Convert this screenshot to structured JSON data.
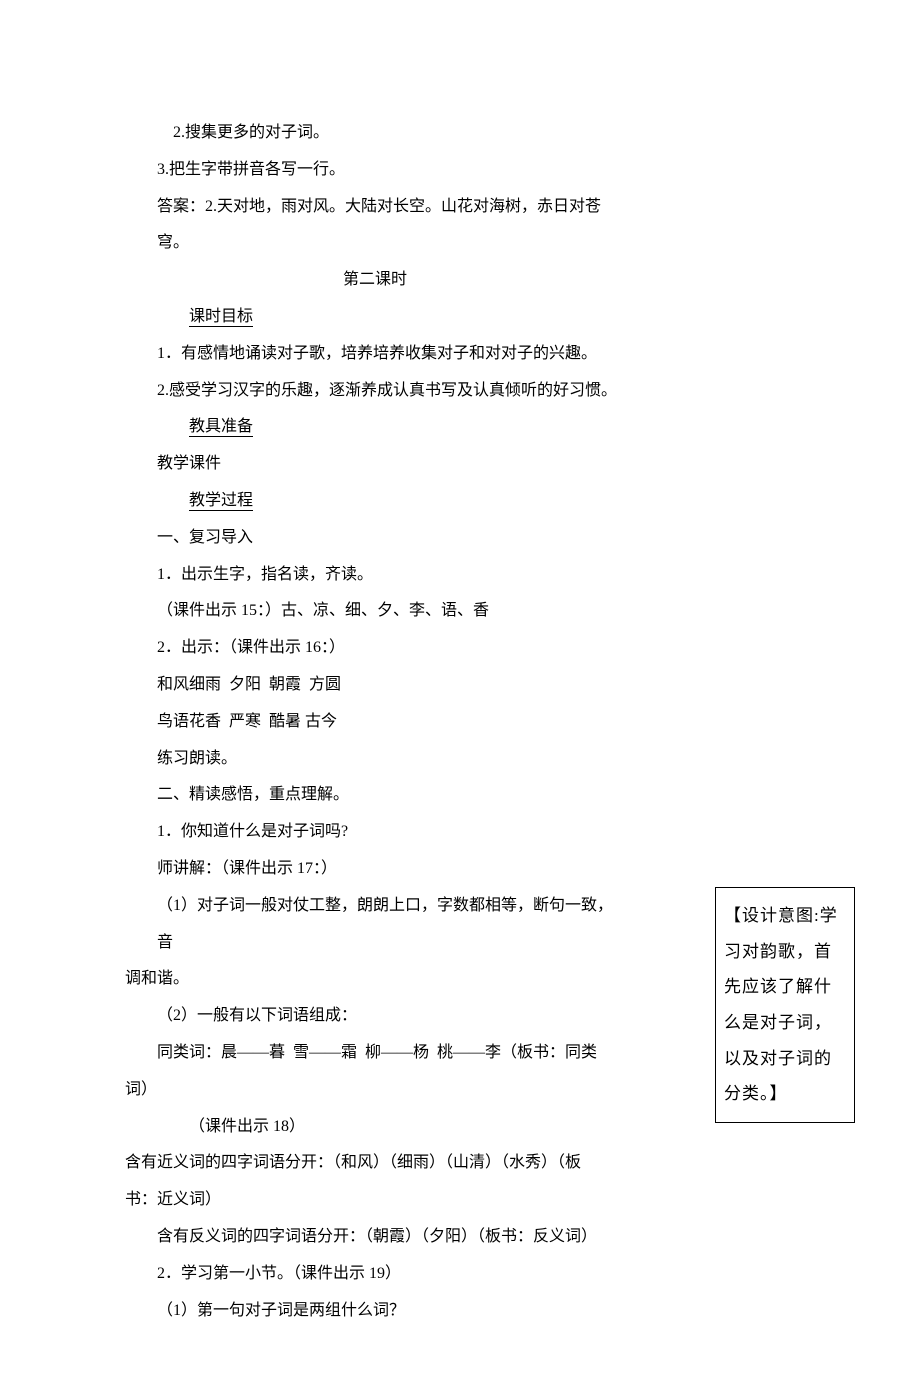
{
  "lines": [
    {
      "cls": "indent1",
      "text": "2.搜集更多的对子词。"
    },
    {
      "cls": "indent2",
      "text": "3.把生字带拼音各写一行。"
    },
    {
      "cls": "indent2",
      "text": "答案：2.天对地，雨对风。大陆对长空。山花对海树，赤日对苍穹。"
    },
    {
      "cls": "center",
      "text": "第二课时"
    },
    {
      "cls": "indent3",
      "heading": true,
      "text": "课时目标"
    },
    {
      "cls": "indent2",
      "text": "1．有感情地诵读对子歌，培养培养收集对子和对对子的兴趣。"
    },
    {
      "cls": "indent2",
      "text": "2.感受学习汉字的乐趣，逐渐养成认真书写及认真倾听的好习惯。"
    },
    {
      "cls": "indent3",
      "heading": true,
      "text": "教具准备"
    },
    {
      "cls": "indent2",
      "text": "教学课件"
    },
    {
      "cls": "indent3",
      "heading": true,
      "text": "教学过程"
    },
    {
      "cls": "indent2",
      "text": "一、复习导入"
    },
    {
      "cls": "indent2",
      "text": "1．出示生字，指名读，齐读。"
    },
    {
      "cls": "indent2",
      "text": "（课件出示 15：）古、凉、细、夕、李、语、香"
    },
    {
      "cls": "indent2",
      "text": "2．出示：（课件出示 16：）"
    },
    {
      "cls": "indent2",
      "text": "和风细雨  夕阳  朝霞  方圆"
    },
    {
      "cls": "indent2",
      "text": "鸟语花香  严寒  酷暑 古今"
    },
    {
      "cls": "indent2",
      "text": "练习朗读。"
    },
    {
      "cls": "indent2",
      "text": "二、精读感悟，重点理解。"
    },
    {
      "cls": "indent2",
      "text": "1．你知道什么是对子词吗?"
    },
    {
      "cls": "indent2",
      "text": "师讲解：（课件出示 17：）"
    },
    {
      "cls": "indent2",
      "text": "（1）对子词一般对仗工整，朗朗上口，字数都相等，断句一致，音"
    },
    {
      "cls": "indent0",
      "text": "调和谐。"
    },
    {
      "cls": "indent2",
      "text": "（2）一般有以下词语组成："
    },
    {
      "cls": "indent2",
      "text": "同类词：晨——暮  雪——霜  柳——杨  桃——李（板书：同类"
    },
    {
      "cls": "indent0",
      "text": "词）"
    },
    {
      "cls": "indent3",
      "text": "（课件出示 18）"
    },
    {
      "cls": "indent0",
      "text": "含有近义词的四字词语分开：（和风）（细雨）（山清）（水秀）（板"
    },
    {
      "cls": "indent0",
      "text": "书：近义词）"
    },
    {
      "cls": "indent2",
      "text": "含有反义词的四字词语分开：（朝霞）（夕阳）（板书：反义词）"
    },
    {
      "cls": "indent2",
      "text": "2．学习第一小节。（课件出示 19）"
    },
    {
      "cls": "indent2",
      "text": "（1）第一句对子词是两组什么词？"
    }
  ],
  "sidebox": "【设计意图:学习对韵歌，首先应该了解什么是对子词，以及对子词的分类。】"
}
